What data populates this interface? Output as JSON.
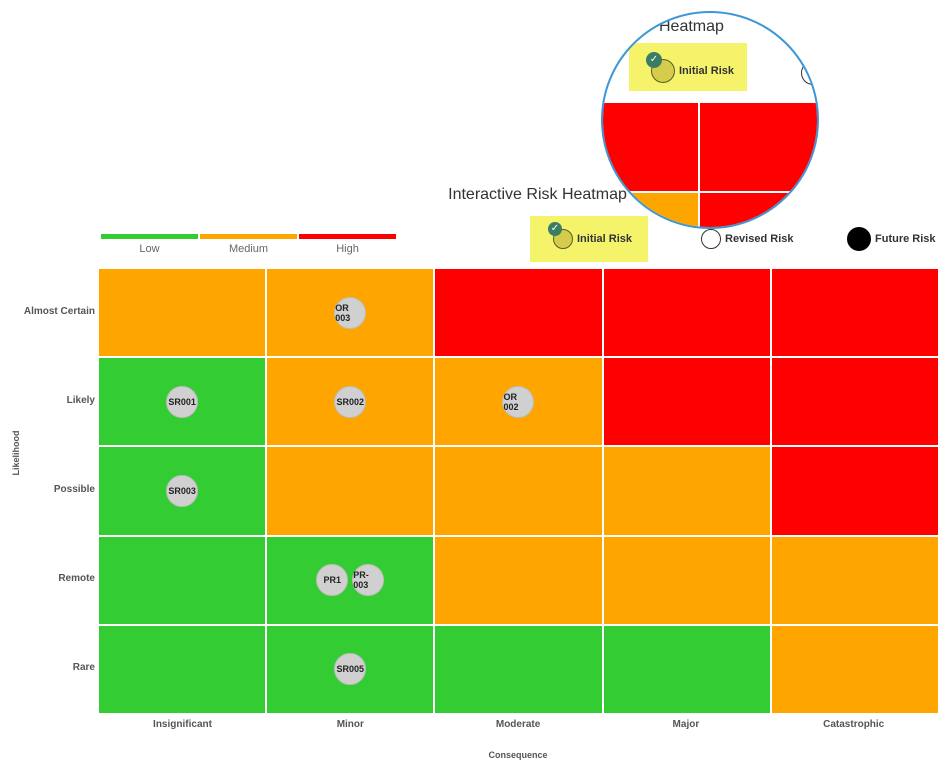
{
  "chart_data": {
    "type": "heatmap",
    "title": "Interactive Risk Heatmap",
    "xlabel": "Consequence",
    "ylabel": "Likelihood",
    "x_categories": [
      "Insignificant",
      "Minor",
      "Moderate",
      "Major",
      "Catastrophic"
    ],
    "y_categories": [
      "Almost Certain",
      "Likely",
      "Possible",
      "Remote",
      "Rare"
    ],
    "severity_legend": [
      {
        "label": "Low",
        "color": "#33cc33"
      },
      {
        "label": "Medium",
        "color": "#ffa500"
      },
      {
        "label": "High",
        "color": "#ff0000"
      }
    ],
    "cell_levels": [
      [
        "Medium",
        "Medium",
        "High",
        "High",
        "High"
      ],
      [
        "Low",
        "Medium",
        "Medium",
        "High",
        "High"
      ],
      [
        "Low",
        "Medium",
        "Medium",
        "Medium",
        "High"
      ],
      [
        "Low",
        "Low",
        "Medium",
        "Medium",
        "Medium"
      ],
      [
        "Low",
        "Low",
        "Low",
        "Low",
        "Medium"
      ]
    ],
    "series_legend": [
      {
        "label": "Initial Risk",
        "selected": true,
        "icon": "check-icon"
      },
      {
        "label": "Revised Risk",
        "selected": false
      },
      {
        "label": "Future Risk",
        "selected": false
      }
    ],
    "risks": [
      {
        "id": "OR 003",
        "likelihood": "Almost Certain",
        "consequence": "Minor"
      },
      {
        "id": "SR001",
        "likelihood": "Likely",
        "consequence": "Insignificant"
      },
      {
        "id": "SR002",
        "likelihood": "Likely",
        "consequence": "Minor"
      },
      {
        "id": "OR 002",
        "likelihood": "Likely",
        "consequence": "Moderate"
      },
      {
        "id": "SR003",
        "likelihood": "Possible",
        "consequence": "Insignificant"
      },
      {
        "id": "PR1",
        "likelihood": "Remote",
        "consequence": "Minor"
      },
      {
        "id": "PR-003",
        "likelihood": "Remote",
        "consequence": "Minor"
      },
      {
        "id": "SR005",
        "likelihood": "Rare",
        "consequence": "Minor"
      }
    ]
  },
  "magnifier": {
    "title_fragment": "Heatmap",
    "legend_label": "Initial Risk"
  }
}
